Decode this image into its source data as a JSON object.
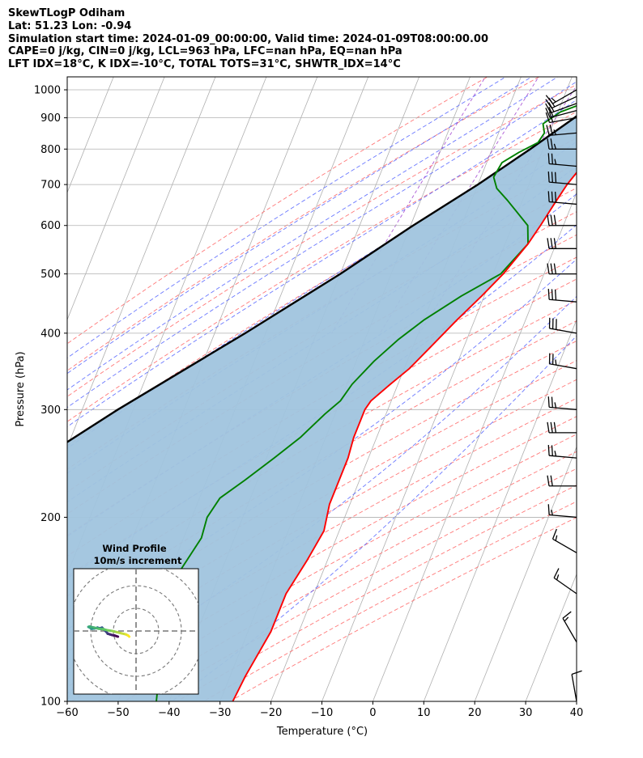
{
  "header": {
    "lines": [
      "SkewTLogP Odiham",
      "Lat: 51.23   Lon: -0.94",
      "Simulation start time: 2024-01-09_00:00:00, Valid time: 2024-01-09T08:00:00.00",
      "CAPE=0 j/kg, CIN=0 j/kg, LCL=963 hPa, LFC=nan hPa, EQ=nan hPa",
      "LFT IDX=18°C, K IDX=-10°C, TOTAL TOTS=31°C, SHWTR_IDX=14°C"
    ]
  },
  "chart_data": {
    "type": "skew-t log-p",
    "xlabel": "Temperature (°C)",
    "ylabel": "Pressure (hPa)",
    "xlim": [
      -60,
      40
    ],
    "ylim": [
      1050,
      100
    ],
    "y_scale": "log",
    "x_ticks": [
      -60,
      -50,
      -40,
      -30,
      -20,
      -10,
      0,
      10,
      20,
      30,
      40
    ],
    "x_tick_labels": [
      "−60",
      "−50",
      "−40",
      "−30",
      "−20",
      "−10",
      "0",
      "10",
      "20",
      "30",
      "40"
    ],
    "y_ticks": [
      1000,
      900,
      800,
      700,
      600,
      500,
      400,
      300,
      200,
      100
    ],
    "y_tick_labels": [
      "1000",
      "900",
      "800",
      "700",
      "600",
      "500",
      "400",
      "300",
      "200",
      "100"
    ],
    "grid": true,
    "colors": {
      "temperature": "#ff0000",
      "dewpoint": "#008000",
      "parcel": "#000000",
      "shade": "#a0c4de",
      "isotherm": "#b0b0b0",
      "dry_adiabat": "#ff6060",
      "moist_adiabat": "#5060ff",
      "mixing_ratio": "#9933cc"
    },
    "temperature": {
      "pressure": [
        1010,
        1000,
        970,
        930,
        900,
        860,
        830,
        800,
        770,
        700,
        650,
        600,
        560,
        500,
        460,
        420,
        380,
        350,
        330,
        310,
        300,
        290,
        270,
        250,
        230,
        210,
        190,
        170,
        150,
        130,
        110,
        100
      ],
      "values": [
        0.0,
        -1.5,
        -2.0,
        0.5,
        1.5,
        1.8,
        1.5,
        0.5,
        -0.5,
        -2.5,
        -3.5,
        -4.5,
        -5.5,
        -8.0,
        -10.5,
        -13.5,
        -16.5,
        -19.0,
        -21.5,
        -24.0,
        -24.5,
        -24.5,
        -24.5,
        -24.0,
        -24.0,
        -24.0,
        -23.0,
        -24.0,
        -25.5,
        -25.5,
        -27.0,
        -27.5
      ]
    },
    "dewpoint": {
      "pressure": [
        1012,
        1000,
        960,
        920,
        880,
        850,
        820,
        790,
        760,
        720,
        690,
        660,
        600,
        560,
        500,
        460,
        420,
        390,
        360,
        330,
        310,
        295,
        270,
        250,
        230,
        215,
        200,
        185,
        165,
        145,
        125,
        110,
        100
      ],
      "values": [
        -2.5,
        -2.5,
        -4.5,
        -9.5,
        -12.0,
        -11.0,
        -11.5,
        -14.5,
        -17.0,
        -17.5,
        -16.0,
        -13.0,
        -7.0,
        -5.5,
        -8.5,
        -14.5,
        -20.0,
        -23.5,
        -26.5,
        -29.0,
        -30.0,
        -32.0,
        -35.0,
        -38.5,
        -42.5,
        -46.0,
        -47.0,
        -46.5,
        -48.0,
        -47.5,
        -45.5,
        -44.0,
        -42.5
      ]
    },
    "parcel": {
      "pressure": [
        1010,
        963,
        900,
        800,
        700,
        600,
        500,
        400,
        300,
        200,
        150,
        100
      ],
      "values": [
        0.5,
        -3.0,
        -6.3,
        -12.5,
        -20.0,
        -29.5,
        -40.0,
        -54.0,
        -73.0,
        -97.5,
        -114.0,
        -136.0
      ]
    },
    "wind_barbs": {
      "pressure": [
        1000,
        975,
        950,
        925,
        900,
        850,
        800,
        750,
        700,
        650,
        600,
        550,
        500,
        450,
        400,
        350,
        300,
        275,
        250,
        225,
        200,
        175,
        150,
        125,
        100
      ],
      "speed_kt": [
        15,
        20,
        20,
        20,
        20,
        25,
        25,
        25,
        30,
        30,
        30,
        30,
        30,
        30,
        30,
        25,
        25,
        30,
        25,
        20,
        15,
        15,
        15,
        15,
        10
      ],
      "direction_deg": [
        240,
        245,
        250,
        255,
        260,
        265,
        270,
        275,
        275,
        275,
        270,
        270,
        270,
        275,
        280,
        280,
        275,
        270,
        275,
        270,
        275,
        300,
        305,
        330,
        350
      ]
    },
    "hodograph": {
      "title": "Wind Profile",
      "subtitle": "10m/s increment",
      "ring_increment_ms": 10,
      "u": [
        -8.0,
        -9.5,
        -10.5,
        -11.5,
        -12.5,
        -13.0,
        -14.0,
        -15.0,
        -16.0,
        -17.0,
        -17.5,
        -18.5,
        -19.5,
        -20.0,
        -21.0,
        -20.5,
        -18.5,
        -16.5,
        -14.5,
        -12.5,
        -10.5,
        -8.5,
        -6.5,
        -4.5,
        -3.5,
        -3.0
      ],
      "v": [
        -2.5,
        -2.0,
        -1.8,
        -1.5,
        -1.2,
        -0.5,
        0.5,
        1.5,
        1.2,
        1.5,
        1.3,
        1.1,
        1.0,
        1.3,
        1.8,
        2.0,
        1.5,
        1.0,
        0.8,
        0.3,
        0.0,
        -0.5,
        -1.0,
        -1.5,
        -2.0,
        -2.5
      ]
    }
  }
}
